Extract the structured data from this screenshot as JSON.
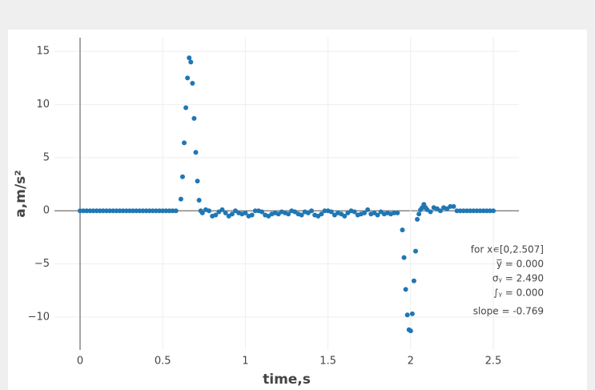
{
  "chart_data": {
    "type": "scatter",
    "x_label": "time,s",
    "y_label": "a,m/s²",
    "xlim": [
      -0.155,
      2.655
    ],
    "ylim": [
      -13.1,
      16.3
    ],
    "xticks": [
      0,
      0.5,
      1,
      1.5,
      2,
      2.5
    ],
    "yticks": [
      {
        "value": -10,
        "label": "−10"
      },
      {
        "value": -5,
        "label": "−5"
      },
      0,
      5,
      10,
      15
    ],
    "grid": true,
    "series": [
      {
        "color": "#1f77b4",
        "x": [
          0,
          0.02,
          0.04,
          0.06,
          0.08,
          0.1,
          0.12,
          0.14,
          0.16,
          0.18,
          0.2,
          0.22,
          0.24,
          0.26,
          0.28,
          0.3,
          0.32,
          0.34,
          0.36,
          0.38,
          0.4,
          0.42,
          0.44,
          0.46,
          0.48,
          0.5,
          0.52,
          0.54,
          0.56,
          0.58,
          0.61,
          0.62,
          0.63,
          0.64,
          0.65,
          0.66,
          0.67,
          0.68,
          0.69,
          0.7,
          0.71,
          0.72,
          0.73,
          0.74,
          0.76,
          0.78,
          0.8,
          0.82,
          0.84,
          0.86,
          0.88,
          0.9,
          0.92,
          0.94,
          0.96,
          0.98,
          1,
          1.02,
          1.04,
          1.06,
          1.08,
          1.1,
          1.12,
          1.14,
          1.16,
          1.18,
          1.2,
          1.22,
          1.24,
          1.26,
          1.28,
          1.3,
          1.32,
          1.34,
          1.36,
          1.38,
          1.4,
          1.42,
          1.44,
          1.46,
          1.48,
          1.5,
          1.52,
          1.54,
          1.56,
          1.58,
          1.6,
          1.62,
          1.64,
          1.66,
          1.68,
          1.7,
          1.72,
          1.74,
          1.76,
          1.78,
          1.8,
          1.82,
          1.84,
          1.86,
          1.88,
          1.9,
          1.92,
          1.95,
          1.96,
          1.97,
          1.98,
          1.99,
          2,
          2.01,
          2.02,
          2.03,
          2.04,
          2.05,
          2.06,
          2.07,
          2.08,
          2.09,
          2.1,
          2.12,
          2.14,
          2.16,
          2.18,
          2.2,
          2.22,
          2.24,
          2.26,
          2.28,
          2.3,
          2.32,
          2.34,
          2.36,
          2.38,
          2.4,
          2.42,
          2.44,
          2.46,
          2.48,
          2.5
        ],
        "values": [
          0,
          0,
          0,
          0,
          0,
          0,
          0,
          0,
          0,
          0,
          0,
          0,
          0,
          0,
          0,
          0,
          0,
          0,
          0,
          0,
          0,
          0,
          0,
          0,
          0,
          0,
          0,
          0,
          0,
          0,
          1.1,
          3.2,
          6.4,
          9.7,
          12.5,
          14.4,
          14,
          12,
          8.7,
          5.5,
          2.8,
          1,
          0,
          -0.2,
          0.1,
          0,
          -0.5,
          -0.4,
          -0.1,
          0.1,
          -0.2,
          -0.5,
          -0.3,
          0,
          -0.2,
          -0.3,
          -0.2,
          -0.5,
          -0.4,
          0,
          0,
          -0.1,
          -0.4,
          -0.5,
          -0.3,
          -0.2,
          -0.3,
          -0.1,
          -0.2,
          -0.3,
          0,
          -0.1,
          -0.3,
          -0.4,
          -0.1,
          -0.2,
          0,
          -0.4,
          -0.5,
          -0.3,
          0,
          0,
          -0.1,
          -0.4,
          -0.2,
          -0.3,
          -0.5,
          -0.2,
          0,
          -0.1,
          -0.4,
          -0.3,
          -0.2,
          0.1,
          -0.3,
          -0.2,
          -0.4,
          -0.1,
          -0.3,
          -0.2,
          -0.3,
          -0.2,
          -0.2,
          -1.8,
          -4.4,
          -7.4,
          -9.8,
          -11.2,
          -11.3,
          -9.7,
          -6.6,
          -3.8,
          -0.8,
          -0.3,
          0.1,
          0.3,
          0.6,
          0.3,
          0.1,
          -0.1,
          0.3,
          0.2,
          0,
          0.3,
          0.2,
          0.4,
          0.4,
          0,
          0,
          0,
          0,
          0,
          0,
          0,
          0,
          0,
          0,
          0,
          0
        ]
      }
    ],
    "annotation": [
      "for x∊[0,2.507]",
      "y̅ = 0.000",
      "σᵧ = 2.490",
      "∫ᵧ = 0.000",
      "slope = -0.769"
    ]
  }
}
